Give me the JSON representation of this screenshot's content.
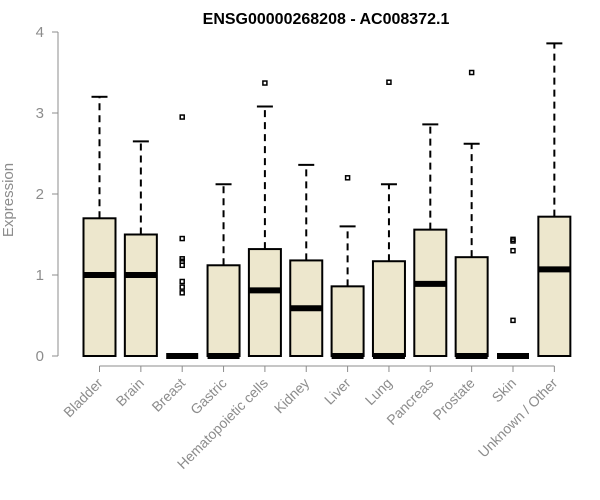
{
  "chart_data": {
    "type": "boxplot",
    "title": "ENSG00000268208 - AC008372.1",
    "xlabel": "",
    "ylabel": "Expression",
    "ylim": [
      0,
      4
    ],
    "yticks": [
      0,
      1,
      2,
      3,
      4
    ],
    "box_color": "#ede7cd",
    "grid": false,
    "categories": [
      "Bladder",
      "Brain",
      "Breast",
      "Gastric",
      "Hematopoietic cells",
      "Kidney",
      "Liver",
      "Lung",
      "Pancreas",
      "Prostate",
      "Skin",
      "Unknown / Other"
    ],
    "boxes": [
      {
        "category": "Bladder",
        "whisker_low": 0,
        "q1": 0,
        "median": 1.0,
        "q3": 1.7,
        "whisker_high": 3.2,
        "outliers": []
      },
      {
        "category": "Brain",
        "whisker_low": 0,
        "q1": 0,
        "median": 1.0,
        "q3": 1.5,
        "whisker_high": 2.65,
        "outliers": []
      },
      {
        "category": "Breast",
        "whisker_low": 0,
        "q1": 0,
        "median": 0,
        "q3": 0,
        "whisker_high": 0,
        "outliers": [
          2.95,
          1.45,
          1.2,
          1.17,
          1.12,
          0.92,
          0.85,
          0.78
        ]
      },
      {
        "category": "Gastric",
        "whisker_low": 0,
        "q1": 0,
        "median": 0,
        "q3": 1.12,
        "whisker_high": 2.12,
        "outliers": []
      },
      {
        "category": "Hematopoietic cells",
        "whisker_low": 0,
        "q1": 0,
        "median": 0.81,
        "q3": 1.32,
        "whisker_high": 3.08,
        "outliers": [
          3.37
        ]
      },
      {
        "category": "Kidney",
        "whisker_low": 0,
        "q1": 0,
        "median": 0.59,
        "q3": 1.18,
        "whisker_high": 2.36,
        "outliers": []
      },
      {
        "category": "Liver",
        "whisker_low": 0,
        "q1": 0,
        "median": 0,
        "q3": 0.86,
        "whisker_high": 1.6,
        "outliers": [
          2.2
        ]
      },
      {
        "category": "Lung",
        "whisker_low": 0,
        "q1": 0,
        "median": 0,
        "q3": 1.17,
        "whisker_high": 2.12,
        "outliers": [
          3.38
        ]
      },
      {
        "category": "Pancreas",
        "whisker_low": 0,
        "q1": 0,
        "median": 0.89,
        "q3": 1.56,
        "whisker_high": 2.86,
        "outliers": []
      },
      {
        "category": "Prostate",
        "whisker_low": 0,
        "q1": 0,
        "median": 0,
        "q3": 1.22,
        "whisker_high": 2.62,
        "outliers": [
          3.5
        ]
      },
      {
        "category": "Skin",
        "whisker_low": 0,
        "q1": 0,
        "median": 0,
        "q3": 0,
        "whisker_high": 0,
        "outliers": [
          1.44,
          1.42,
          1.3,
          0.44
        ]
      },
      {
        "category": "Unknown / Other",
        "whisker_low": 0,
        "q1": 0,
        "median": 1.07,
        "q3": 1.72,
        "whisker_high": 3.86,
        "outliers": []
      }
    ]
  }
}
